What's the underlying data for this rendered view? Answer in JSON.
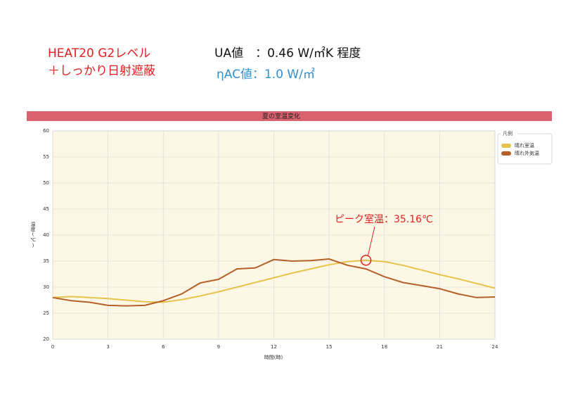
{
  "heading": {
    "left": [
      "HEAT20 G2レベル",
      "＋しっかり日射遮蔽"
    ],
    "right": [
      "UA値　：0.46 W/㎡K 程度",
      "ηAC値：1.0 W/㎡"
    ]
  },
  "chart_data": {
    "type": "line",
    "title": "夏の室温変化",
    "xlabel": "時間(時)",
    "ylabel": "温度(℃)",
    "x": [
      0,
      1,
      2,
      3,
      4,
      5,
      6,
      7,
      8,
      9,
      10,
      11,
      12,
      13,
      14,
      15,
      16,
      17,
      18,
      19,
      20,
      21,
      22,
      23,
      24
    ],
    "series": [
      {
        "name": "晴れ室温",
        "color": "#e6c34b",
        "values": [
          28.0,
          28.2,
          28.0,
          27.8,
          27.5,
          27.2,
          27.1,
          27.6,
          28.3,
          29.1,
          30.0,
          30.9,
          31.8,
          32.7,
          33.5,
          34.3,
          34.9,
          35.16,
          34.9,
          34.2,
          33.3,
          32.4,
          31.6,
          30.7,
          29.8
        ]
      },
      {
        "name": "晴れ外気温",
        "color": "#b5602a",
        "values": [
          28.0,
          27.4,
          27.1,
          26.5,
          26.4,
          26.5,
          27.4,
          28.7,
          30.8,
          31.5,
          33.5,
          33.7,
          35.3,
          35.0,
          35.1,
          35.4,
          34.2,
          33.5,
          32.0,
          30.9,
          30.3,
          29.7,
          28.7,
          28.0,
          28.1
        ]
      }
    ],
    "xlim": [
      0,
      24
    ],
    "xticks": [
      0,
      3,
      6,
      9,
      12,
      15,
      18,
      21,
      24
    ],
    "ylim": [
      20,
      60
    ],
    "yticks": [
      20,
      25,
      30,
      35,
      40,
      45,
      50,
      55,
      60
    ],
    "grid": true,
    "legend": "right",
    "legend_title": "凡例",
    "annotation": "ピーク室温：35.16℃"
  }
}
